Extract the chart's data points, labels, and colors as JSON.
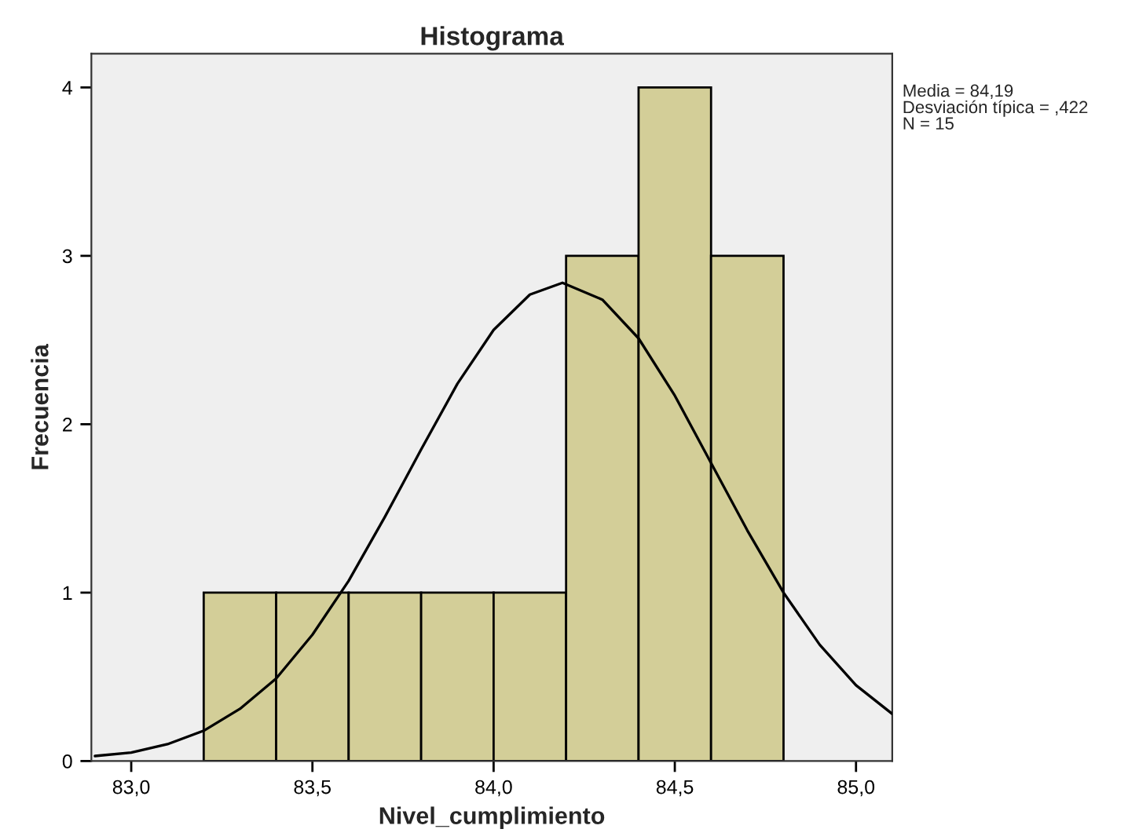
{
  "chart_data": {
    "type": "histogram",
    "title": "Histograma",
    "xlabel": "Nivel_cumplimiento",
    "ylabel": "Frecuencia",
    "bins": [
      83.2,
      83.4,
      83.6,
      83.8,
      84.0,
      84.2,
      84.4,
      84.6,
      84.8
    ],
    "values": [
      1,
      1,
      1,
      1,
      1,
      3,
      4,
      3
    ],
    "color": "#d3ce98",
    "series": [
      {
        "type": "line",
        "color": "#000000",
        "x": [
          82.9,
          83.0,
          83.1,
          83.2,
          83.3,
          83.4,
          83.5,
          83.6,
          83.7,
          83.8,
          83.9,
          84.0,
          84.1,
          84.19,
          84.3,
          84.4,
          84.5,
          84.6,
          84.7,
          84.8,
          84.9,
          85.0,
          85.1
        ],
        "values": [
          0.03,
          0.05,
          0.1,
          0.18,
          0.31,
          0.49,
          0.75,
          1.07,
          1.45,
          1.85,
          2.24,
          2.56,
          2.77,
          2.84,
          2.74,
          2.51,
          2.17,
          1.77,
          1.37,
          1.0,
          0.69,
          0.45,
          0.28
        ]
      }
    ],
    "xlim": [
      82.89,
      85.1
    ],
    "xticks": [
      {
        "value": 83.0,
        "label": "83,0"
      },
      {
        "value": 83.5,
        "label": "83,5"
      },
      {
        "value": 84.0,
        "label": "84,0"
      },
      {
        "value": 84.5,
        "label": "84,5"
      },
      {
        "value": 85.0,
        "label": "85,0"
      }
    ],
    "ylim": [
      0,
      4.2
    ],
    "yticks": [
      0,
      1,
      2,
      3,
      4
    ],
    "grid": false,
    "legend": false,
    "annotations": [
      "Media = 84,19",
      "Desviación típica = ,422",
      "N = 15"
    ]
  }
}
